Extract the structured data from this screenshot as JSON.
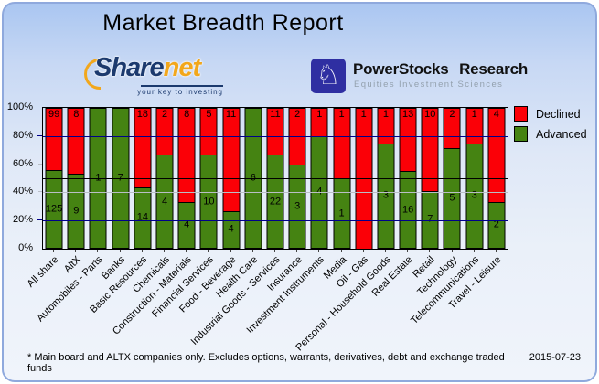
{
  "header": {
    "title": "Market Breadth Report"
  },
  "logos": {
    "sharenet": {
      "brand_part1": "Share",
      "brand_part2": "net",
      "tagline": "your key to investing",
      "navy": "#1c3a6e",
      "orange": "#f2a71c"
    },
    "powerstocks": {
      "title": "PowerStocks Research",
      "subtitle": "Equities Investment Sciences",
      "icon": "knight-chess-icon",
      "icon_glyph": "♘",
      "square_blue": "#2f2fa2"
    }
  },
  "chart_data": {
    "type": "bar",
    "variant": "stacked-percent-column",
    "title": "Market Breadth Report",
    "categories": [
      "All share",
      "AltX",
      "Automobiles - Parts",
      "Banks",
      "Basic Resources",
      "Chemicals",
      "Construction - Materials",
      "Financial Services",
      "Food - Beverage",
      "Health Care",
      "Industrial Goods - Services",
      "Insurance",
      "Investment Instruments",
      "Media",
      "Oil - Gas",
      "Personal - Household Goods",
      "Real Estate",
      "Retail",
      "Technology",
      "Telecommunications",
      "Travel - Leisure"
    ],
    "series": [
      {
        "name": "Declined",
        "color": "#fb0007",
        "values": [
          99,
          8,
          0,
          0,
          18,
          2,
          8,
          5,
          11,
          0,
          11,
          2,
          1,
          1,
          1,
          1,
          13,
          10,
          2,
          1,
          4
        ]
      },
      {
        "name": "Advanced",
        "color": "#458312",
        "values": [
          125,
          9,
          1,
          7,
          14,
          4,
          4,
          10,
          4,
          6,
          22,
          3,
          4,
          1,
          0,
          3,
          16,
          7,
          5,
          3,
          2
        ]
      }
    ],
    "y_ticks": [
      "100%",
      "80%",
      "60%",
      "40%",
      "20%",
      "0%"
    ],
    "ylim": [
      0,
      100
    ],
    "gridlines": {
      "navy_at": [
        80,
        20
      ],
      "silver_at": [
        60,
        40
      ],
      "midline_at": 50
    },
    "legend_position": "top-right"
  },
  "footer": {
    "disclaimer": "* Main board and ALTX companies only. Excludes options, warrants, derivatives, debt and exchange traded funds",
    "date": "2015-07-23"
  }
}
